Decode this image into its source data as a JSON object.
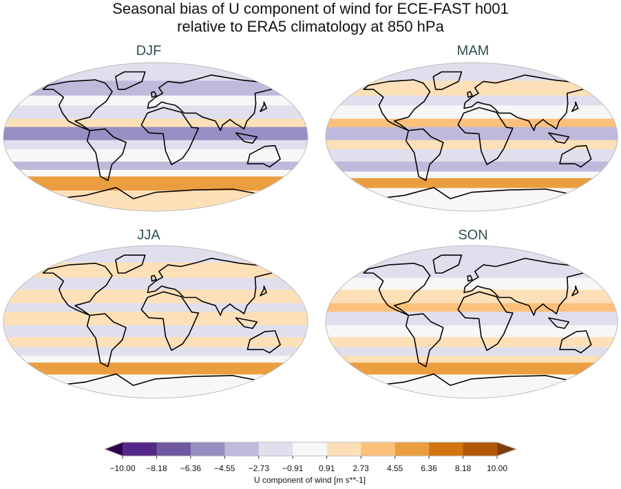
{
  "title": {
    "line1": "Seasonal bias of U component of wind for ECE-FAST h001",
    "line2": "relative to ERA5 climatology at 850 hPa"
  },
  "panels": [
    {
      "label": "DJF"
    },
    {
      "label": "MAM"
    },
    {
      "label": "JJA"
    },
    {
      "label": "SON"
    }
  ],
  "colorbar": {
    "label": "U component of wind [m s**-1]",
    "ticks": [
      "−10.00",
      "−8.18",
      "−6.36",
      "−4.55",
      "−2.73",
      "−0.91",
      "0.91",
      "2.73",
      "4.55",
      "6.36",
      "8.18",
      "10.00"
    ],
    "colors": [
      "#542788",
      "#6f58a0",
      "#998ec3",
      "#c0b9dc",
      "#dfdfee",
      "#f7f7f7",
      "#fde0b8",
      "#fdc07a",
      "#eb9e3f",
      "#d4740f",
      "#b35806"
    ],
    "extend_low_color": "#2d004b",
    "extend_high_color": "#7f3b08",
    "colormap": "PuOr (reversed)"
  }
}
